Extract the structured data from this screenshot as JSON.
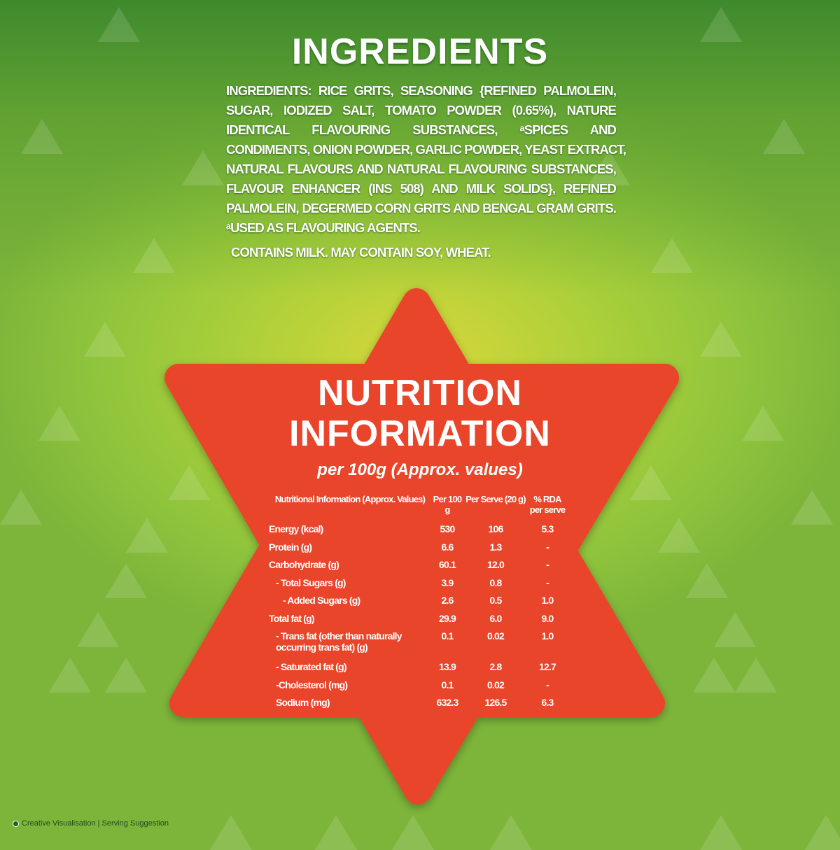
{
  "ingredients": {
    "title": "INGREDIENTS",
    "lines": [
      "INGREDIENTS: RICE GRITS, SEASONING {REFINED PALMOLEIN,",
      "SUGAR, IODIZED SALT, TOMATO POWDER (0.65%), NATURE",
      "IDENTICAL FLAVOURING SUBSTANCES, ᵃSPICES AND",
      "CONDIMENTS, ONION POWDER, GARLIC POWDER, YEAST EXTRACT,",
      "NATURAL FLAVOURS AND NATURAL FLAVOURING SUBSTANCES,",
      "FLAVOUR ENHANCER (INS 508) AND MILK SOLIDS}, REFINED",
      "PALMOLEIN, DEGERMED CORN GRITS AND BENGAL GRAM GRITS.",
      "ᵃUSED AS FLAVOURING AGENTS."
    ],
    "allergen": "CONTAINS MILK. MAY CONTAIN SOY, WHEAT."
  },
  "nutrition": {
    "title_line1": "NUTRITION",
    "title_line2": "INFORMATION",
    "subtitle": "per 100g (Approx. values)",
    "headers": [
      "Nutritional Information (Approx. Values)",
      "Per 100 g",
      "Per Serve (20 g)",
      "% RDA per serve"
    ],
    "rows": [
      [
        "Energy (kcal)",
        "530",
        "106",
        "5.3"
      ],
      [
        "Protein (g)",
        "6.6",
        "1.3",
        "-"
      ],
      [
        "Carbohydrate (g)",
        "60.1",
        "12.0",
        "-"
      ],
      [
        " - Total Sugars (g)",
        "3.9",
        "0.8",
        "-"
      ],
      [
        "  - Added Sugars (g)",
        "2.6",
        "0.5",
        "1.0"
      ],
      [
        "Total fat (g)",
        "29.9",
        "6.0",
        "9.0"
      ],
      [
        " - Trans fat (other than naturally occurring trans fat) (g)",
        "0.1",
        "0.02",
        "1.0"
      ],
      [
        " - Saturated fat (g)",
        "13.9",
        "2.8",
        "12.7"
      ],
      [
        " -Cholesterol (mg)",
        "0.1",
        "0.02",
        "-"
      ],
      [
        " Sodium (mg)",
        "632.3",
        "126.5",
        "6.3"
      ]
    ]
  },
  "footer": {
    "note": "Creative Visualisation | Serving Suggestion"
  },
  "colors": {
    "star": "#e8452a",
    "background": "#9ccc3c"
  }
}
